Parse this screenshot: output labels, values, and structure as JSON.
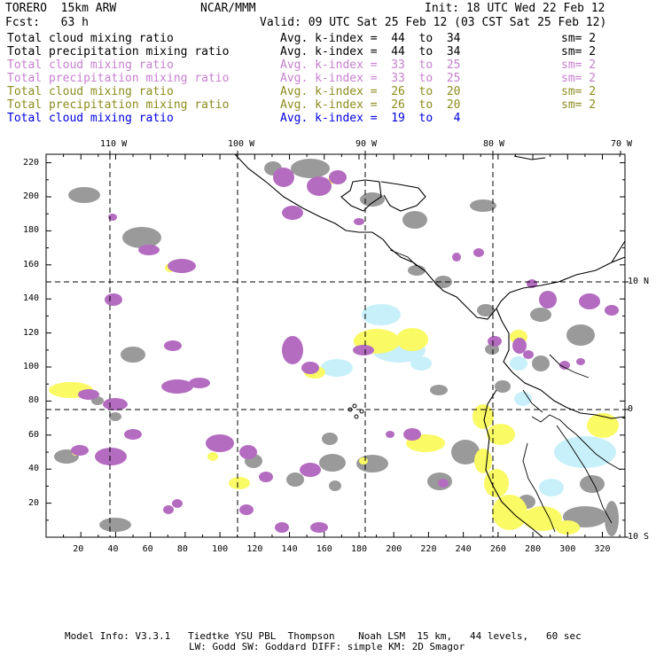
{
  "header": {
    "model": "TORERO  15km ARW",
    "org": "NCAR/MMM",
    "init": "Init: 18 UTC Wed 22 Feb 12",
    "fcst": "Fcst:   63 h",
    "valid": "Valid: 09 UTC Sat 25 Feb 12 (03 CST Sat 25 Feb 12)"
  },
  "legend": [
    {
      "field": "Total cloud mixing ratio",
      "kindex": "Avg. k-index =  44  to  34",
      "sm": "sm= 2",
      "color": "#000000"
    },
    {
      "field": "Total precipitation mixing ratio",
      "kindex": "Avg. k-index =  44  to  34",
      "sm": "sm= 2",
      "color": "#000000"
    },
    {
      "field": "Total cloud mixing ratio",
      "kindex": "Avg. k-index =  33  to  25",
      "sm": "sm= 2",
      "color": "#c77fd0"
    },
    {
      "field": "Total precipitation mixing ratio",
      "kindex": "Avg. k-index =  33  to  25",
      "sm": "sm= 2",
      "color": "#c77fd0"
    },
    {
      "field": "Total cloud mixing ratio",
      "kindex": "Avg. k-index =  26  to  20",
      "sm": "sm= 2",
      "color": "#8c8c1e"
    },
    {
      "field": "Total precipitation mixing ratio",
      "kindex": "Avg. k-index =  26  to  20",
      "sm": "sm= 2",
      "color": "#8c8c1e"
    },
    {
      "field": "Total cloud mixing ratio",
      "kindex": "Avg. k-index =  19  to   4",
      "sm": "",
      "color": "#0000e0"
    }
  ],
  "map": {
    "lon_labels": [
      "110 W",
      "100 W",
      "90 W",
      "80 W",
      "70 W"
    ],
    "lat_labels": [
      "10 N",
      "0",
      "10 S"
    ],
    "x_ticks": [
      "20",
      "40",
      "60",
      "80",
      "100",
      "120",
      "140",
      "160",
      "180",
      "200",
      "220",
      "240",
      "260",
      "280",
      "300",
      "320"
    ],
    "y_ticks": [
      "220",
      "200",
      "180",
      "160",
      "140",
      "120",
      "100",
      "80",
      "60",
      "40",
      "20"
    ],
    "colors": {
      "gray": "#9a9a9a",
      "purple": "#b46cc0",
      "yellow": "#fafa64",
      "cyan": "#c8f0fa"
    }
  },
  "footer": {
    "line1": "Model Info: V3.3.1   Tiedtke YSU PBL  Thompson    Noah LSM  15 km,   44 levels,   60 sec",
    "line2": "LW: Godd SW: Goddard DIFF: simple KM: 2D Smagor"
  }
}
